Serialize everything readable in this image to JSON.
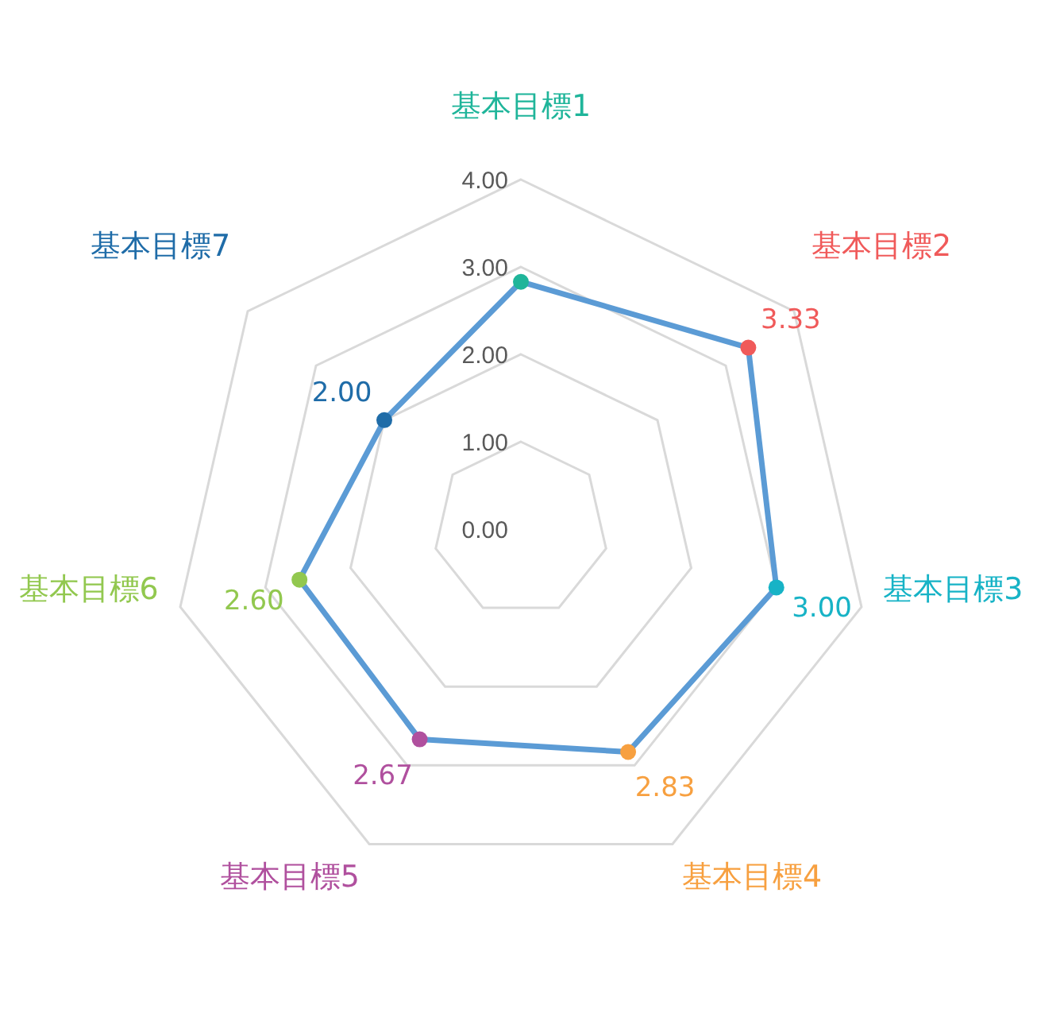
{
  "chart_data": {
    "type": "radar",
    "categories": [
      "基本目標1",
      "基本目標2",
      "基本目標3",
      "基本目標4",
      "基本目標5",
      "基本目標6",
      "基本目標7"
    ],
    "ylim": [
      0,
      4
    ],
    "yticks": [
      {
        "value": 0,
        "label": "0.00"
      },
      {
        "value": 1,
        "label": "1.00"
      },
      {
        "value": 2,
        "label": "2.00"
      },
      {
        "value": 3,
        "label": "3.00"
      },
      {
        "value": 4,
        "label": "4.00"
      }
    ],
    "grid": true,
    "marker": "circle",
    "line_style": "solid",
    "series": [
      {
        "color": "#5b9bd5",
        "colors": [
          "#1fb59a",
          "#f05a5a",
          "#17b3c6",
          "#f7a040",
          "#b0509e",
          "#92c84f",
          "#1f6ca8"
        ],
        "values": [
          2.83,
          3.33,
          3.0,
          2.83,
          2.67,
          2.6,
          2.0
        ],
        "value_labels": [
          null,
          "3.33",
          "3.00",
          "2.83",
          "2.67",
          "2.60",
          "2.00"
        ]
      }
    ]
  }
}
